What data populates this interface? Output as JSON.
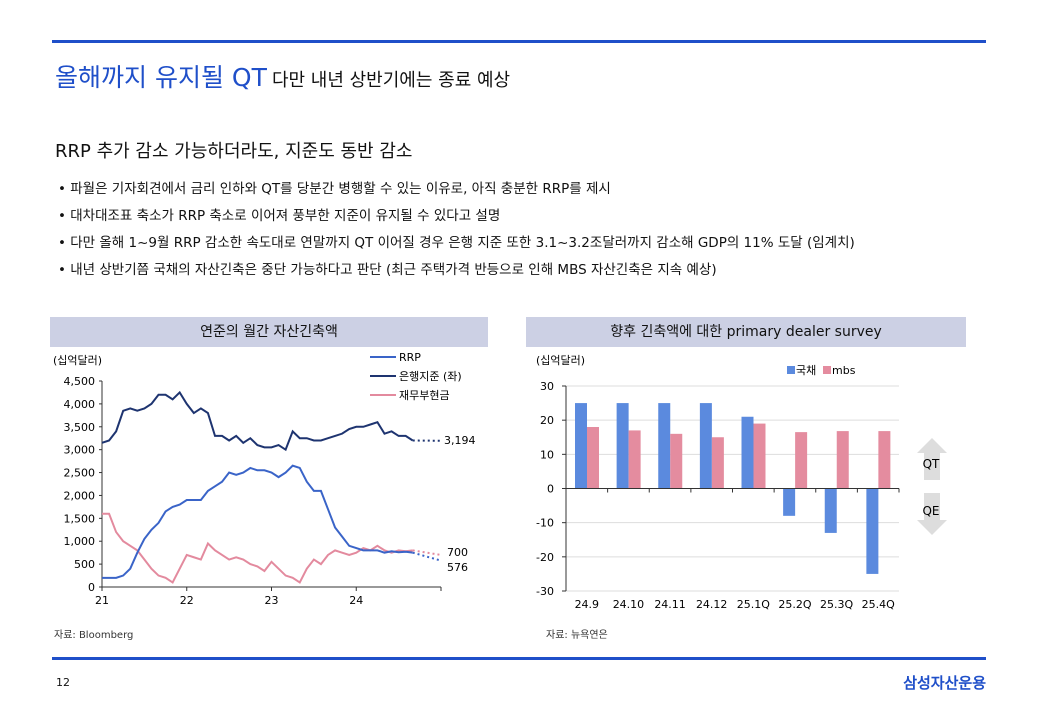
{
  "header": {
    "title_main": "올해까지 유지될 QT",
    "title_sub": "다만 내년 상반기에는 종료 예상"
  },
  "section": {
    "subtitle": "RRP 추가 감소 가능하더라도, 지준도 동반 감소",
    "bullets": [
      "• 파월은 기자회견에서 금리 인하와 QT를 당분간 병행할 수 있는 이유로, 아직 충분한 RRP를 제시",
      "• 대차대조표 축소가 RRP 축소로 이어져 풍부한 지준이 유지될 수 있다고 설명",
      "•  다만 올해 1~9월 RRP 감소한 속도대로 연말까지 QT 이어질 경우 은행 지준 또한 3.1~3.2조달러까지 감소해 GDP의 11% 도달 (임계치)",
      "• 내년 상반기쯤 국채의 자산긴축은 중단 가능하다고 판단 (최근 주택가격 반등으로 인해 MBS 자산긴축은 지속 예상)"
    ]
  },
  "footer": {
    "page": "12",
    "brand": "삼성자산운용"
  },
  "chart_data": [
    {
      "type": "line",
      "title": "연준의 월간 자산긴축액",
      "unit": "(십억달러)",
      "source": "자료: Bloomberg",
      "ylim": [
        0,
        4500
      ],
      "yticks": [
        "0",
        "500",
        "1,000",
        "1,500",
        "2,000",
        "2,500",
        "3,000",
        "3,500",
        "4,000",
        "4,500"
      ],
      "ytick_values": [
        0,
        500,
        1000,
        1500,
        2000,
        2500,
        3000,
        3500,
        4000,
        4500
      ],
      "xlim": [
        2021,
        2025
      ],
      "xticks": [
        "21",
        "22",
        "23",
        "24"
      ],
      "xtick_values": [
        2021,
        2022,
        2023,
        2024
      ],
      "x_start": 2021.0,
      "x_step_months": 1,
      "series": [
        {
          "name": "RRP",
          "color": "#3a64c8",
          "values": [
            200,
            200,
            200,
            250,
            400,
            750,
            1050,
            1250,
            1400,
            1650,
            1750,
            1800,
            1900,
            1900,
            1900,
            2100,
            2200,
            2300,
            2500,
            2450,
            2500,
            2600,
            2550,
            2550,
            2500,
            2400,
            2500,
            2650,
            2600,
            2300,
            2100,
            2100,
            1700,
            1300,
            1100,
            900,
            850,
            800,
            800,
            800,
            750,
            780,
            760,
            770,
            750
          ],
          "projection": 576,
          "projection_label": "576"
        },
        {
          "name": "은행지준 (좌)",
          "color": "#1e3470",
          "values": [
            3150,
            3200,
            3400,
            3850,
            3900,
            3850,
            3900,
            4000,
            4200,
            4200,
            4100,
            4250,
            4000,
            3800,
            3900,
            3800,
            3300,
            3300,
            3200,
            3300,
            3150,
            3250,
            3100,
            3050,
            3050,
            3100,
            3000,
            3400,
            3250,
            3250,
            3200,
            3200,
            3250,
            3300,
            3350,
            3450,
            3500,
            3500,
            3550,
            3600,
            3350,
            3400,
            3300,
            3300,
            3200
          ],
          "projection": 3194,
          "projection_label": "3,194"
        },
        {
          "name": "재무부현금",
          "color": "#e38a9e",
          "values": [
            1600,
            1600,
            1200,
            1000,
            900,
            800,
            600,
            400,
            250,
            200,
            100,
            400,
            700,
            650,
            600,
            950,
            800,
            700,
            600,
            650,
            600,
            500,
            450,
            350,
            550,
            400,
            250,
            200,
            100,
            400,
            600,
            500,
            700,
            800,
            750,
            700,
            750,
            850,
            800,
            900,
            800,
            750,
            800,
            780,
            800
          ],
          "projection": 700,
          "projection_label": "700"
        }
      ]
    },
    {
      "type": "bar",
      "title": "향후 긴축액에 대한 primary dealer survey",
      "unit": "(십억달러)",
      "source": "자료: 뉴욕연은",
      "categories": [
        "24.9",
        "24.10",
        "24.11",
        "24.12",
        "25.1Q",
        "25.2Q",
        "25.3Q",
        "25.4Q"
      ],
      "ylim": [
        -30,
        30
      ],
      "yticks": [
        "-30",
        "-20",
        "-10",
        "0",
        "10",
        "20",
        "30"
      ],
      "ytick_values": [
        -30,
        -20,
        -10,
        0,
        10,
        20,
        30
      ],
      "series": [
        {
          "name": "국채",
          "color": "#5b8ade",
          "values": [
            25,
            25,
            25,
            25,
            21,
            -8,
            -13,
            -25
          ]
        },
        {
          "name": "mbs",
          "color": "#e48c9f",
          "values": [
            18,
            17,
            16,
            15,
            19,
            16.5,
            16.8,
            16.8
          ]
        }
      ],
      "annotations": {
        "up": "QT",
        "down": "QE"
      }
    }
  ]
}
